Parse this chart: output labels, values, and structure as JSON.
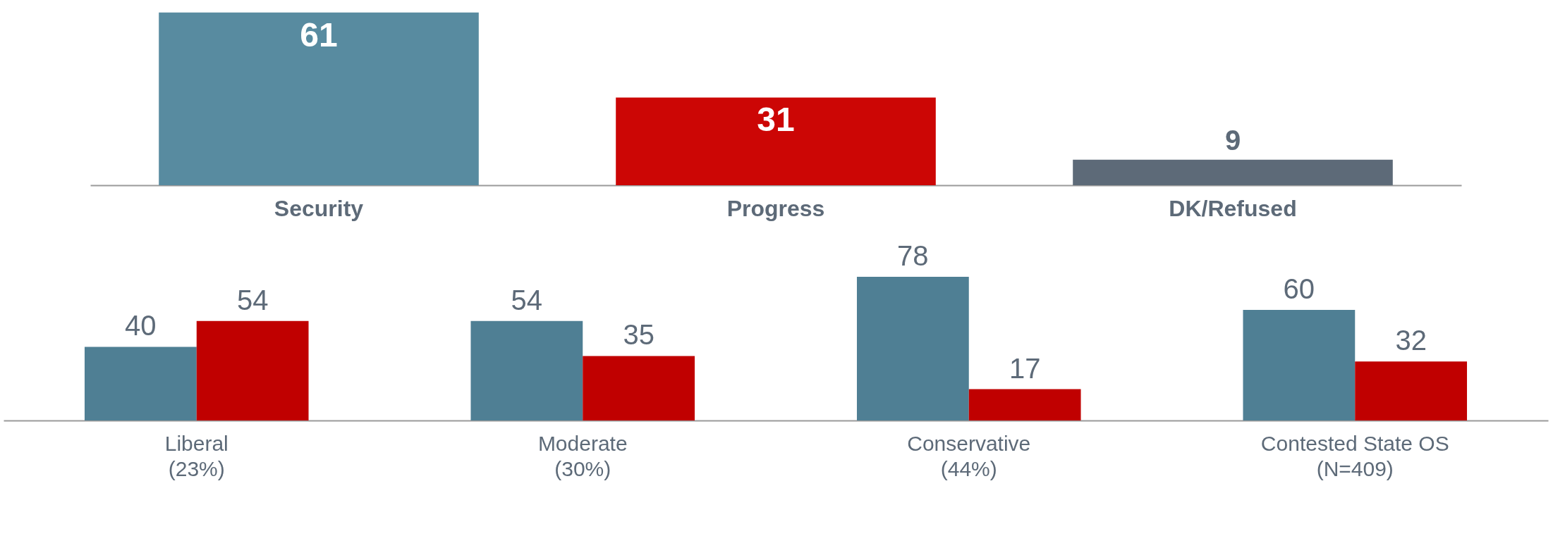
{
  "chart_data": [
    {
      "type": "bar",
      "categories": [
        "Security",
        "Progress",
        "DK/Refused"
      ],
      "values": [
        61,
        31,
        9
      ],
      "colors": [
        "#588ba0",
        "#cc0605",
        "#5d6a78"
      ],
      "data_labels": true,
      "tick_labels": "x"
    },
    {
      "type": "bar",
      "categories": [
        "Liberal\n(23%)",
        "Moderate\n(30%)",
        "Conservative\n(44%)",
        "Contested State OS\n(N=409)"
      ],
      "series": [
        {
          "color": "#4f7f94",
          "values": [
            40,
            54,
            78,
            60
          ]
        },
        {
          "color": "#c00000",
          "values": [
            54,
            35,
            17,
            32
          ]
        }
      ],
      "data_labels": true,
      "tick_labels": "x"
    }
  ]
}
